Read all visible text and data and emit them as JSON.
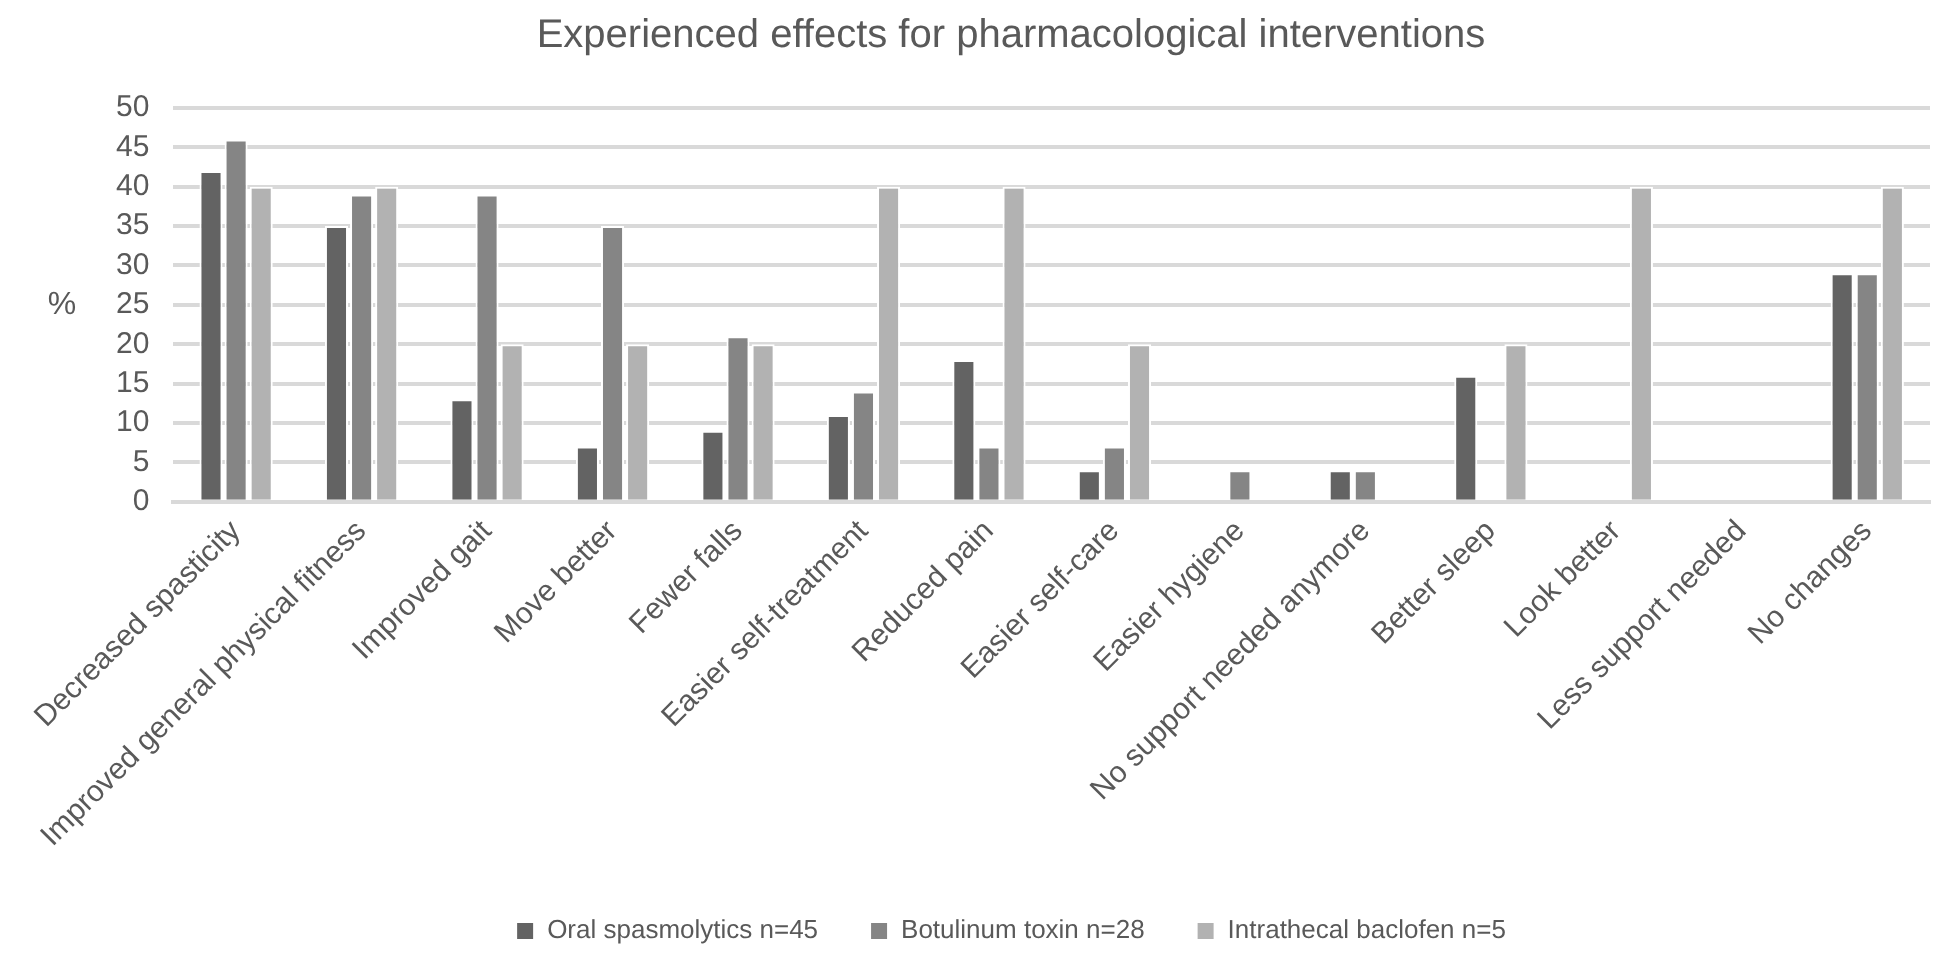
{
  "chart_data": {
    "type": "bar",
    "title": "Experienced effects for pharmacological interventions",
    "ylabel": "%",
    "categories": [
      "Decreased spasticity",
      "Improved general physical fitness",
      "Improved gait",
      "Move better",
      "Fewer falls",
      "Easier self-treatment",
      "Reduced pain",
      "Easier self-care",
      "Easier hygiene",
      "No support needed anymore",
      "Better sleep",
      "Look better",
      "Less support needed",
      "No changes"
    ],
    "series": [
      {
        "name": "Oral spasmolytics n=45",
        "color": "#636363",
        "values": [
          42,
          35,
          13,
          7,
          9,
          11,
          18,
          4,
          null,
          4,
          16,
          null,
          null,
          29
        ]
      },
      {
        "name": "Botulinum toxin n=28",
        "color": "#858585",
        "values": [
          46,
          39,
          39,
          35,
          21,
          14,
          7,
          7,
          4,
          4,
          null,
          null,
          null,
          29
        ]
      },
      {
        "name": "Intrathecal baclofen n=5",
        "color": "#b2b2b2",
        "values": [
          40,
          40,
          20,
          20,
          20,
          40,
          40,
          20,
          null,
          null,
          20,
          40,
          null,
          40
        ]
      }
    ],
    "ylim": [
      0,
      50
    ],
    "yticks": [
      0,
      5,
      10,
      15,
      20,
      25,
      30,
      35,
      40,
      45,
      50
    ],
    "grid": "y",
    "legend": "bottom"
  }
}
